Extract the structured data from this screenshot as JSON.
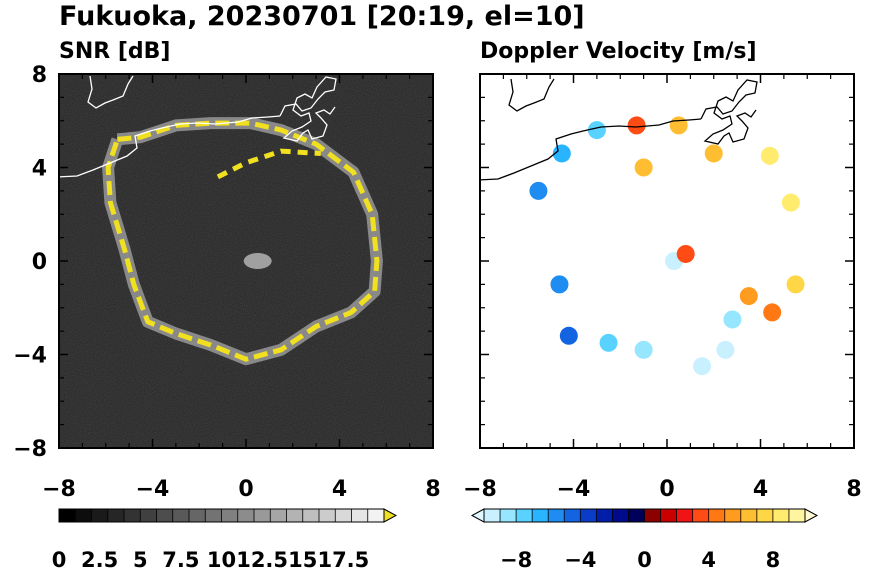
{
  "title": "Fukuoka, 20230701 [20:19, el=10]",
  "chart_data": [
    {
      "type": "heatmap",
      "title": "SNR [dB]",
      "xlim": [
        -8,
        8
      ],
      "ylim": [
        -8,
        8
      ],
      "xticks": [
        "−8",
        "−4",
        "0",
        "4",
        "8"
      ],
      "yticks": [
        "8",
        "4",
        "0",
        "−4",
        "−8"
      ],
      "background": "#242424",
      "colorbar": {
        "min": 0,
        "max": 20,
        "colors": [
          "#000000",
          "#0d0d0d",
          "#1a1a1a",
          "#262626",
          "#333333",
          "#404040",
          "#4d4d4d",
          "#595959",
          "#666666",
          "#737373",
          "#808080",
          "#8c8c8c",
          "#999999",
          "#a6a6a6",
          "#b3b3b3",
          "#bfbfbf",
          "#cccccc",
          "#d9d9d9",
          "#e6e6e6",
          "#f2f2f2"
        ],
        "extend_color": "#f0e020",
        "tick_labels": [
          "0",
          "2.5",
          "5",
          "7.5",
          "10",
          "12.5",
          "15",
          "17.5"
        ]
      },
      "echo_ring": [
        {
          "x": -5.5,
          "y": 5.2
        },
        {
          "x": -4.5,
          "y": 5.3
        },
        {
          "x": -3.0,
          "y": 5.8
        },
        {
          "x": -1.5,
          "y": 5.9
        },
        {
          "x": 0.2,
          "y": 5.9
        },
        {
          "x": 1.5,
          "y": 5.6
        },
        {
          "x": 3.0,
          "y": 5.0
        },
        {
          "x": 4.6,
          "y": 3.8
        },
        {
          "x": 5.4,
          "y": 2.0
        },
        {
          "x": 5.6,
          "y": 0.0
        },
        {
          "x": 5.5,
          "y": -1.3
        },
        {
          "x": 4.5,
          "y": -2.2
        },
        {
          "x": 3.0,
          "y": -2.8
        },
        {
          "x": 1.5,
          "y": -3.8
        },
        {
          "x": 0.0,
          "y": -4.2
        },
        {
          "x": -1.5,
          "y": -3.6
        },
        {
          "x": -3.0,
          "y": -3.1
        },
        {
          "x": -4.2,
          "y": -2.6
        },
        {
          "x": -4.8,
          "y": -1.0
        },
        {
          "x": -5.2,
          "y": 0.5
        },
        {
          "x": -5.8,
          "y": 2.5
        },
        {
          "x": -5.9,
          "y": 4.0
        },
        {
          "x": -5.5,
          "y": 5.2
        }
      ],
      "inner_arc": [
        {
          "x": -1.2,
          "y": 3.6
        },
        {
          "x": 0.0,
          "y": 4.2
        },
        {
          "x": 1.5,
          "y": 4.7
        },
        {
          "x": 3.2,
          "y": 4.6
        }
      ],
      "centre_echo": {
        "x": 0.5,
        "y": 0.0
      }
    },
    {
      "type": "heatmap",
      "title": "Doppler Velocity [m/s]",
      "xlim": [
        -8,
        8
      ],
      "ylim": [
        -8,
        8
      ],
      "xticks": [
        "−8",
        "−4",
        "0",
        "4",
        "8"
      ],
      "yticks": [],
      "background": "#ffffff",
      "colorbar": {
        "min": -10,
        "max": 10,
        "colors": [
          "#c8f0ff",
          "#96e6ff",
          "#5ad2ff",
          "#28b4ff",
          "#1e8cf0",
          "#1464e1",
          "#0a3cc8",
          "#001eaa",
          "#000a8c",
          "#00005a",
          "#8c0000",
          "#c80000",
          "#f01414",
          "#ff4b14",
          "#ff7814",
          "#ff9b1e",
          "#ffbe32",
          "#ffd746",
          "#ffeb6e",
          "#fff5a0"
        ],
        "extend_low": "#e0f8ff",
        "extend_high": "#fffad2",
        "tick_labels": [
          "−8",
          "−4",
          "0",
          "4",
          "8"
        ]
      },
      "velocity_points": [
        {
          "x": -5.5,
          "y": 3.0,
          "v": -5.5
        },
        {
          "x": -4.5,
          "y": 4.6,
          "v": -7.0
        },
        {
          "x": -3.0,
          "y": 5.6,
          "v": -8.0
        },
        {
          "x": -1.3,
          "y": 5.8,
          "v": 3.0
        },
        {
          "x": 0.5,
          "y": 5.8,
          "v": 6.0
        },
        {
          "x": 2.0,
          "y": 4.6,
          "v": 6.5
        },
        {
          "x": 4.4,
          "y": 4.5,
          "v": 8.0
        },
        {
          "x": 5.3,
          "y": 2.5,
          "v": 8.5
        },
        {
          "x": 5.5,
          "y": -1.0,
          "v": 7.5
        },
        {
          "x": -4.6,
          "y": -1.0,
          "v": -6.0
        },
        {
          "x": -4.2,
          "y": -3.2,
          "v": -5.0
        },
        {
          "x": -2.5,
          "y": -3.5,
          "v": -7.5
        },
        {
          "x": -1.0,
          "y": -3.8,
          "v": -9.0
        },
        {
          "x": 1.5,
          "y": -4.5,
          "v": -9.5
        },
        {
          "x": 2.5,
          "y": -3.8,
          "v": -9.8
        },
        {
          "x": 3.5,
          "y": -1.5,
          "v": 5.0
        },
        {
          "x": 4.5,
          "y": -2.2,
          "v": 4.5
        },
        {
          "x": 2.8,
          "y": -2.5,
          "v": -9.0
        },
        {
          "x": 0.3,
          "y": 0.0,
          "v": -9.5
        },
        {
          "x": 0.8,
          "y": 0.3,
          "v": 3.5
        },
        {
          "x": -1.0,
          "y": 4.0,
          "v": 6.8
        }
      ]
    }
  ]
}
